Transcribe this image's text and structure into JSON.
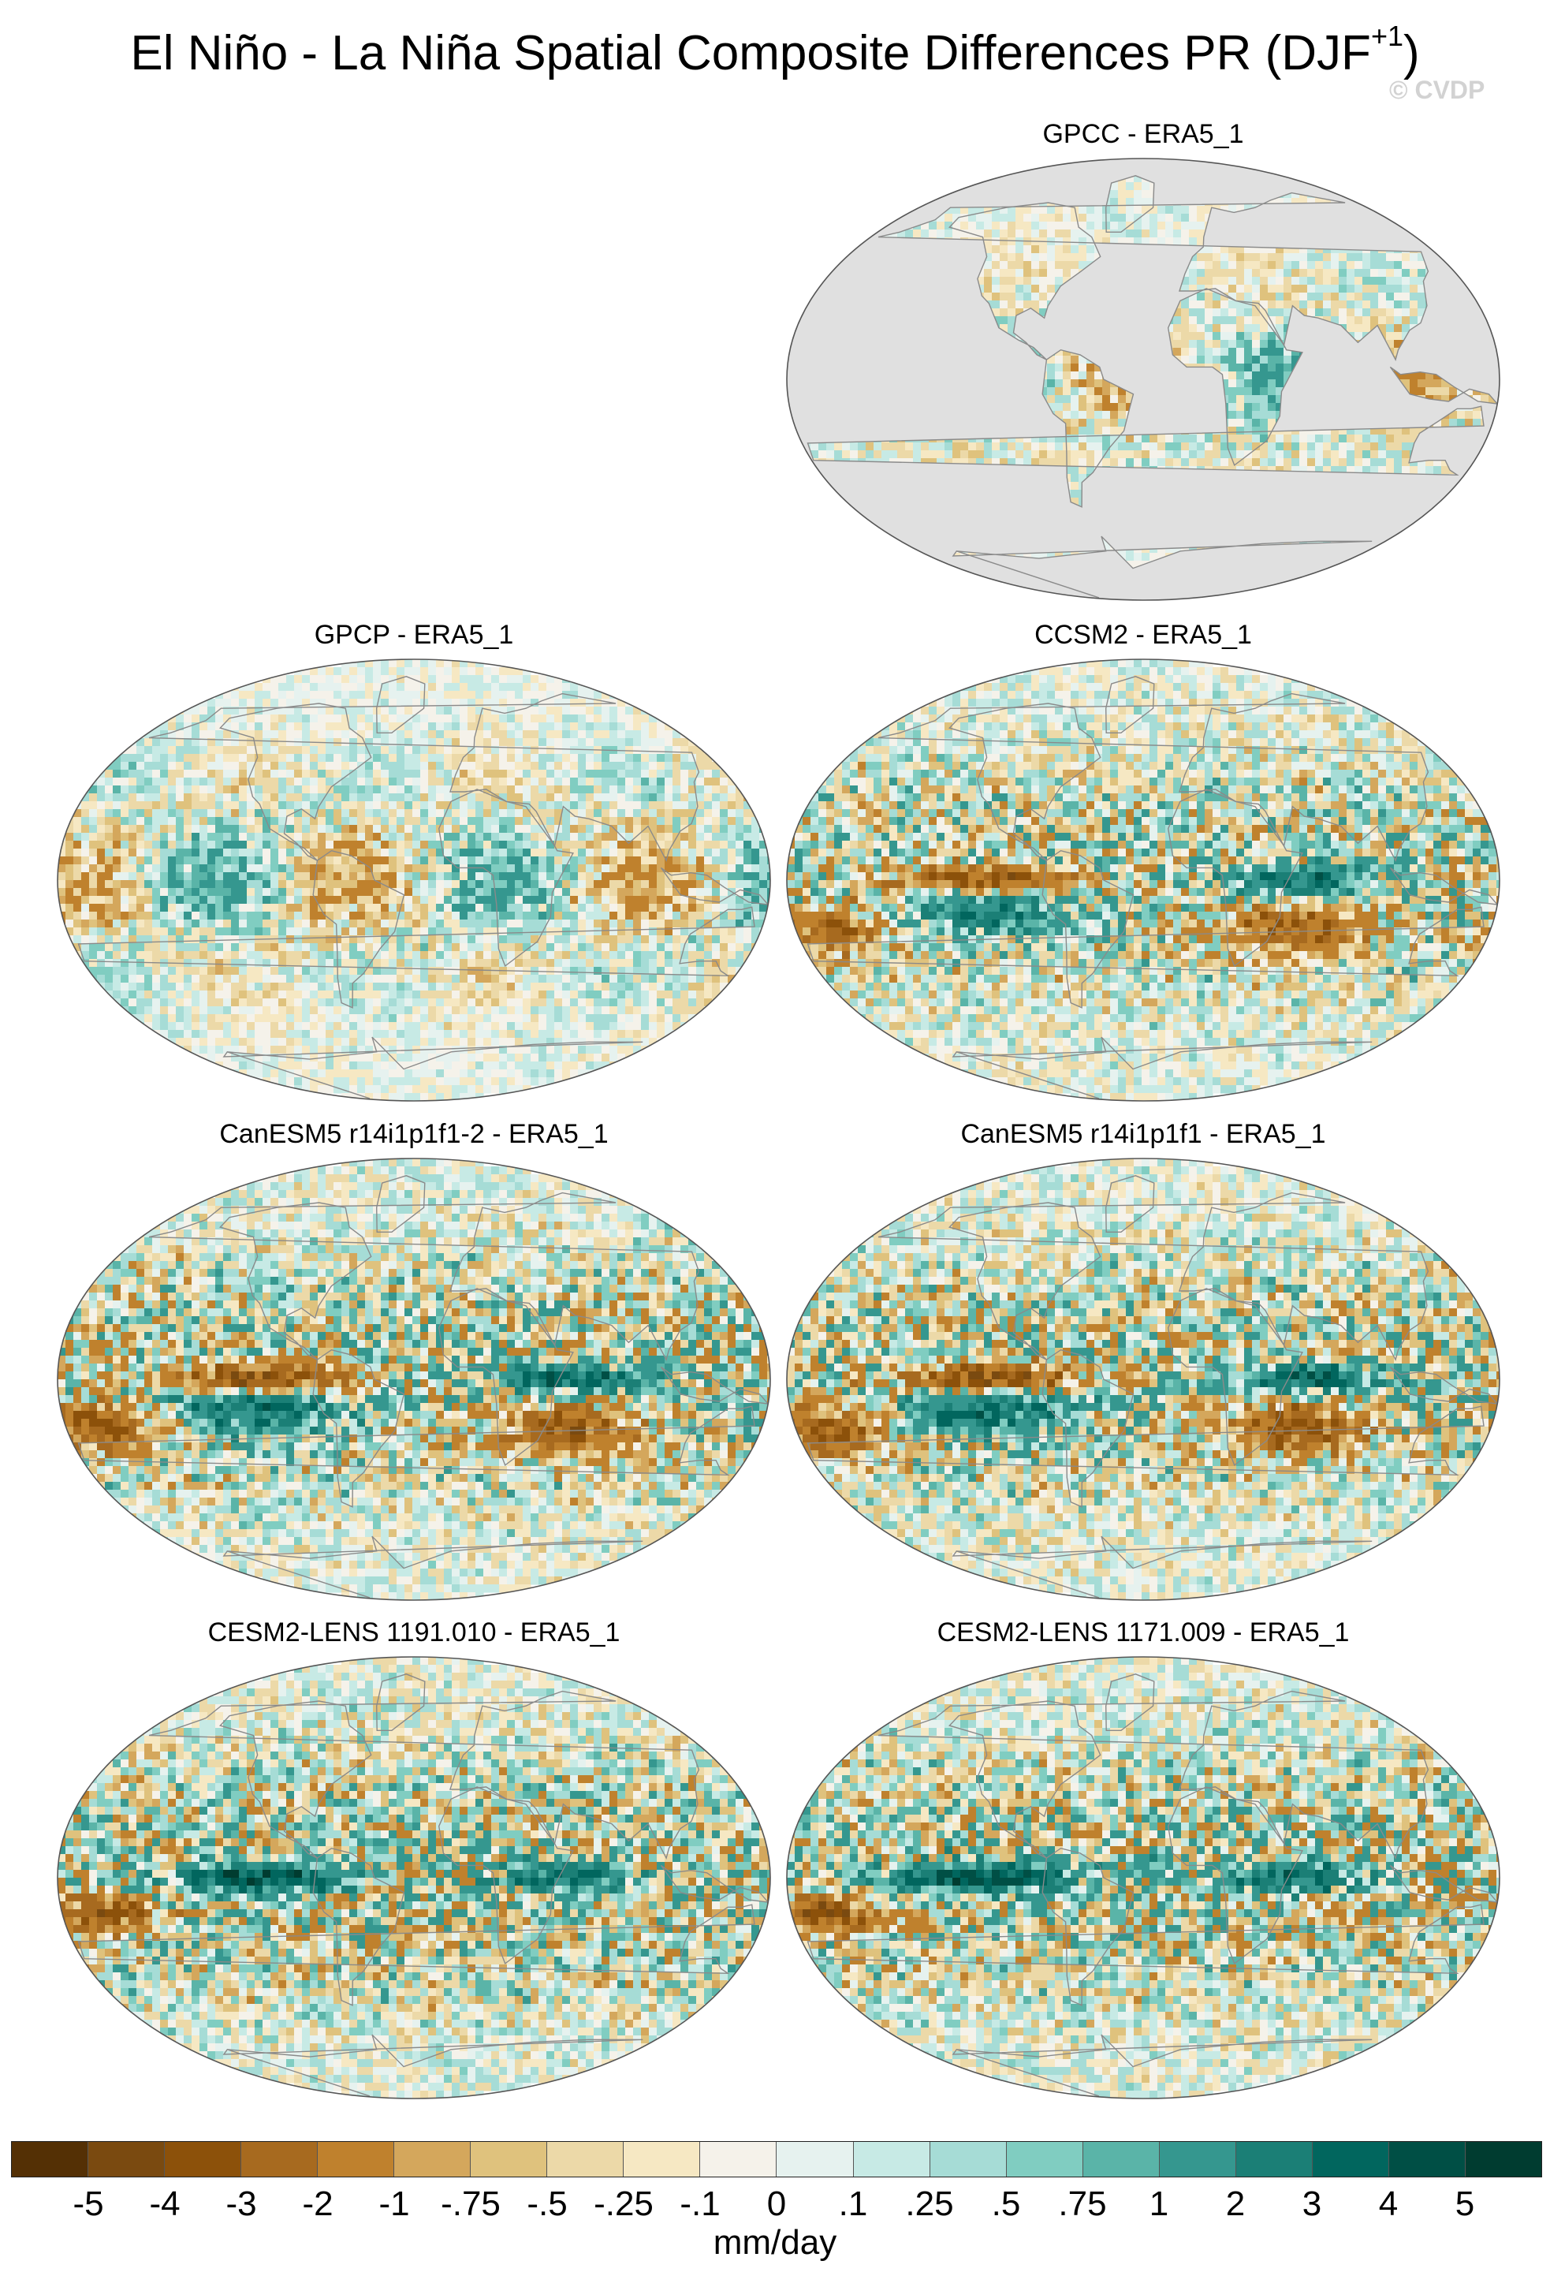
{
  "title": {
    "main": "El Niño - La Niña Spatial Composite Differences PR (DJF",
    "superscript": "+1",
    "close": ")"
  },
  "watermark": "© CVDP",
  "panels": [
    {
      "label": "GPCC - ERA5_1",
      "land_only": true
    },
    {
      "label": "GPCP - ERA5_1",
      "land_only": false
    },
    {
      "label": "CCSM2 - ERA5_1",
      "land_only": false
    },
    {
      "label": "CanESM5 r14i1p1f1-2 - ERA5_1",
      "land_only": false
    },
    {
      "label": "CanESM5 r14i1p1f1 - ERA5_1",
      "land_only": false
    },
    {
      "label": "CESM2-LENS 1191.010 - ERA5_1",
      "land_only": false
    },
    {
      "label": "CESM2-LENS 1171.009 - ERA5_1",
      "land_only": false
    }
  ],
  "colorbar": {
    "units": "mm/day",
    "tick_labels": [
      "-5",
      "-4",
      "-3",
      "-2",
      "-1",
      "-.75",
      "-.5",
      "-.25",
      "-.1",
      "0",
      ".1",
      ".25",
      ".5",
      ".75",
      "1",
      "2",
      "3",
      "4",
      "5"
    ],
    "colors": [
      "#543005",
      "#7a4a10",
      "#8c510a",
      "#a76a1f",
      "#bf812d",
      "#d4a75c",
      "#dfc27d",
      "#ecd9a8",
      "#f6e8c3",
      "#f5f2ea",
      "#e6f2ef",
      "#c7eae5",
      "#a6dcd6",
      "#80cdc1",
      "#5ab4a8",
      "#35978f",
      "#1b7f76",
      "#01665e",
      "#004f45",
      "#003c30"
    ]
  },
  "map_colors": {
    "missing": "#e0e0e0",
    "coast": "#8a8a8a"
  }
}
